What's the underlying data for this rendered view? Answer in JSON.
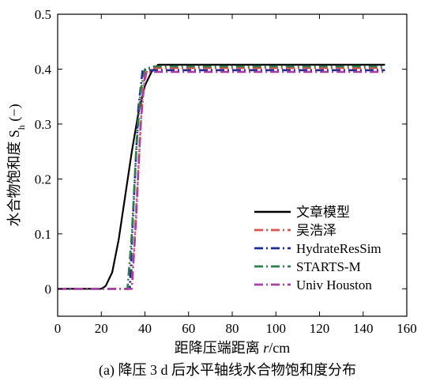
{
  "chart_data": {
    "type": "line",
    "title": "",
    "caption": "(a) 降压 3 d 后水平轴线水合物饱和度分布",
    "xlabel_prefix": "距降压端距离 ",
    "xlabel_var": "r",
    "xlabel_unit": "/cm",
    "ylabel_main": "水合物饱和度 S",
    "ylabel_sub": "h",
    "ylabel_unit": " (−)",
    "xlim": [
      0,
      160
    ],
    "ylim": [
      -0.05,
      0.5
    ],
    "xticks": [
      0,
      20,
      40,
      60,
      80,
      100,
      120,
      140,
      160
    ],
    "yticks": [
      0,
      0.1,
      0.2,
      0.3,
      0.4,
      0.5
    ],
    "ytick_labels": [
      "0",
      "0.1",
      "0.2",
      "0.3",
      "0.4",
      "0.5"
    ],
    "grid": false,
    "legend_position": "bottom-right",
    "series": [
      {
        "name": "文章模型",
        "color": "#000000",
        "dash": "solid",
        "x": [
          0,
          20,
          22,
          25,
          28,
          31,
          34,
          37,
          40,
          43,
          46,
          60,
          80,
          100,
          120,
          150
        ],
        "y": [
          0,
          0,
          0.005,
          0.03,
          0.09,
          0.17,
          0.25,
          0.32,
          0.37,
          0.395,
          0.408,
          0.408,
          0.408,
          0.408,
          0.408,
          0.408
        ]
      },
      {
        "name": "吴浩泽",
        "color": "#d9534f",
        "dash": "dashdot",
        "x": [
          0,
          33,
          35,
          37,
          39,
          41,
          43,
          60,
          80,
          100,
          120,
          150
        ],
        "y": [
          0,
          0,
          0.07,
          0.22,
          0.36,
          0.4,
          0.402,
          0.402,
          0.402,
          0.402,
          0.402,
          0.402
        ]
      },
      {
        "name": "HydrateResSim",
        "color": "#1f2f8f",
        "dash": "dashdot",
        "x": [
          0,
          33,
          35,
          37,
          39,
          41,
          60,
          80,
          100,
          120,
          150
        ],
        "y": [
          0,
          0,
          0.17,
          0.33,
          0.4,
          0.398,
          0.398,
          0.398,
          0.398,
          0.398,
          0.398
        ]
      },
      {
        "name": "STARTS-M",
        "color": "#2e7d4f",
        "dash": "dashdot",
        "x": [
          0,
          32,
          34,
          36,
          38,
          40,
          44,
          60,
          80,
          100,
          120,
          150
        ],
        "y": [
          0,
          0,
          0.1,
          0.25,
          0.36,
          0.4,
          0.405,
          0.405,
          0.405,
          0.405,
          0.405,
          0.405
        ]
      },
      {
        "name": "Univ Houston",
        "color": "#a63fa6",
        "dash": "dashdot",
        "x": [
          0,
          34,
          36,
          38,
          40,
          42,
          60,
          80,
          100,
          120,
          150
        ],
        "y": [
          0,
          0,
          0.13,
          0.3,
          0.39,
          0.395,
          0.395,
          0.395,
          0.395,
          0.395,
          0.395
        ]
      }
    ]
  }
}
